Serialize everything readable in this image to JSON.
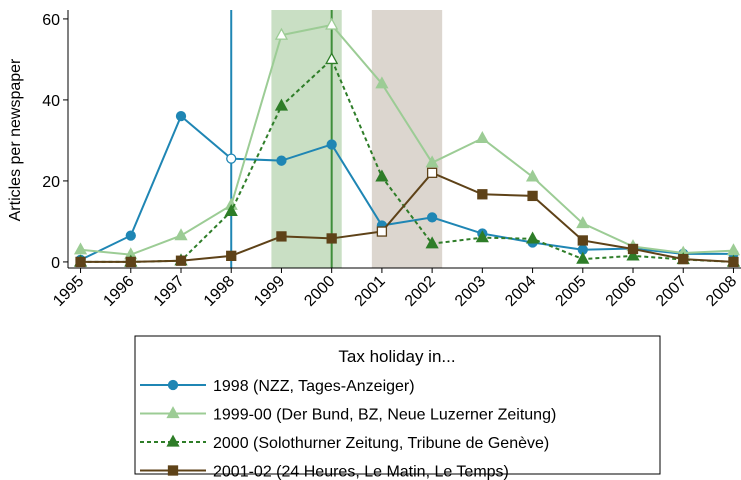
{
  "chart_data": {
    "type": "line",
    "y_label": "Articles per newspaper",
    "x": [
      1995,
      1996,
      1997,
      1998,
      1999,
      2000,
      2001,
      2002,
      2003,
      2004,
      2005,
      2006,
      2007,
      2008
    ],
    "xlim": [
      1994.75,
      2008.15
    ],
    "xticks": [
      1995,
      1996,
      1997,
      1998,
      1999,
      2000,
      2001,
      2002,
      2003,
      2004,
      2005,
      2006,
      2007,
      2008
    ],
    "ylim": [
      -1.5,
      62.2
    ],
    "yticks": [
      0,
      20,
      40,
      60
    ],
    "legend_title": "Tax holiday in...",
    "legend_position": "bottom",
    "shaded_regions": [
      {
        "from": 1998.8,
        "to": 2000.2,
        "color": "#c9dfc4"
      },
      {
        "from": 2000.8,
        "to": 2002.2,
        "color": "#dcd6cf"
      }
    ],
    "vlines": [
      {
        "x": 1998,
        "color": "#1f86b4"
      },
      {
        "x": 2000,
        "color": "#3e8e3a"
      }
    ],
    "series": [
      {
        "name": "1998 (NZZ, Tages-Anzeiger)",
        "color": "#1f86b4",
        "marker": "circle",
        "dash": false,
        "hollow": [
          3
        ],
        "values": [
          0.5,
          6.5,
          36,
          25.5,
          25,
          29,
          9,
          11,
          7,
          4.8,
          3,
          3.3,
          2,
          2
        ]
      },
      {
        "name": "1999-00 (Der Bund, BZ, Neue Luzerner Zeitung)",
        "color": "#9ccc95",
        "marker": "triangle",
        "dash": false,
        "hollow": [
          4,
          5
        ],
        "values": [
          3,
          1.8,
          6.5,
          14,
          56,
          58.5,
          44,
          24.5,
          30.5,
          21,
          9.5,
          3.8,
          2.2,
          2.8
        ]
      },
      {
        "name": "2000 (Solothurner Zeitung, Tribune de Genève)",
        "color": "#2e7d28",
        "marker": "triangle",
        "dash": true,
        "hollow": [
          5
        ],
        "values": [
          0,
          0,
          0.3,
          12.5,
          38.5,
          50,
          21,
          4.5,
          6,
          5.7,
          0.7,
          1.5,
          0.6,
          0
        ]
      },
      {
        "name": "2001-02 (24 Heures, Le Matin, Le Temps)",
        "color": "#5e4218",
        "marker": "square",
        "dash": false,
        "hollow": [
          6,
          7
        ],
        "values": [
          0,
          0,
          0.3,
          1.5,
          6.3,
          5.8,
          7.5,
          22,
          16.7,
          16.3,
          5.3,
          3.2,
          0.7,
          0
        ]
      }
    ]
  }
}
